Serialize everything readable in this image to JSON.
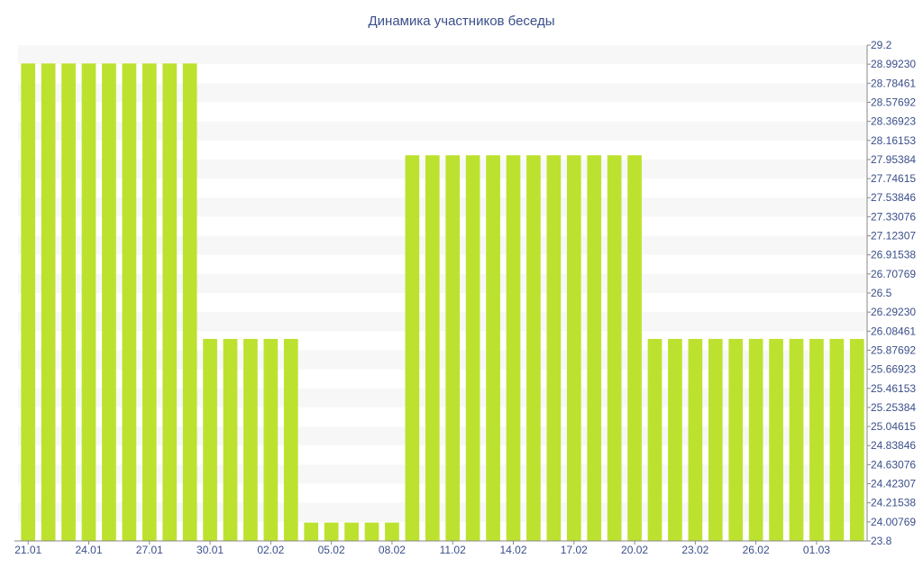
{
  "chart_data": {
    "type": "bar",
    "title": "Динамика участников беседы",
    "xlabel": "",
    "ylabel": "",
    "ylim": [
      23.8,
      29.2
    ],
    "grid": "horizontal-bands",
    "legend": "none",
    "colors": {
      "bar": "#bce22f",
      "band": "#f7f7f7",
      "axis": "#8a8a8a",
      "text": "#3b4f8a"
    },
    "categories": [
      "21.01",
      "22.01",
      "23.01",
      "24.01",
      "25.01",
      "26.01",
      "27.01",
      "28.01",
      "29.01",
      "30.01",
      "31.01",
      "01.02",
      "02.02",
      "03.02",
      "04.02",
      "05.02",
      "06.02",
      "07.02",
      "08.02",
      "09.02",
      "10.02",
      "11.02",
      "12.02",
      "13.02",
      "14.02",
      "15.02",
      "16.02",
      "17.02",
      "18.02",
      "19.02",
      "20.02",
      "21.02",
      "22.02",
      "23.02",
      "24.02",
      "25.02",
      "26.02",
      "27.02",
      "28.02",
      "01.03",
      "02.03",
      "03.03"
    ],
    "x_tick_labels": [
      "21.01",
      "24.01",
      "27.01",
      "30.01",
      "02.02",
      "05.02",
      "08.02",
      "11.02",
      "14.02",
      "17.02",
      "20.02",
      "23.02",
      "26.02",
      "01.03"
    ],
    "y_tick_labels": [
      "29.2",
      "28.99230",
      "28.78461",
      "28.57692",
      "28.36923",
      "28.16153",
      "27.95384",
      "27.74615",
      "27.53846",
      "27.33076",
      "27.12307",
      "26.91538",
      "26.70769",
      "26.5",
      "26.29230",
      "26.08461",
      "25.87692",
      "25.66923",
      "25.46153",
      "25.25384",
      "25.04615",
      "24.83846",
      "24.63076",
      "24.42307",
      "24.21538",
      "24.00769",
      "23.8"
    ],
    "values": [
      29,
      29,
      29,
      29,
      29,
      29,
      29,
      29,
      29,
      26,
      26,
      26,
      26,
      26,
      24,
      24,
      24,
      24,
      24,
      28,
      28,
      28,
      28,
      28,
      28,
      28,
      28,
      28,
      28,
      28,
      28,
      26,
      26,
      26,
      26,
      26,
      26,
      26,
      26,
      26,
      26,
      26
    ]
  }
}
